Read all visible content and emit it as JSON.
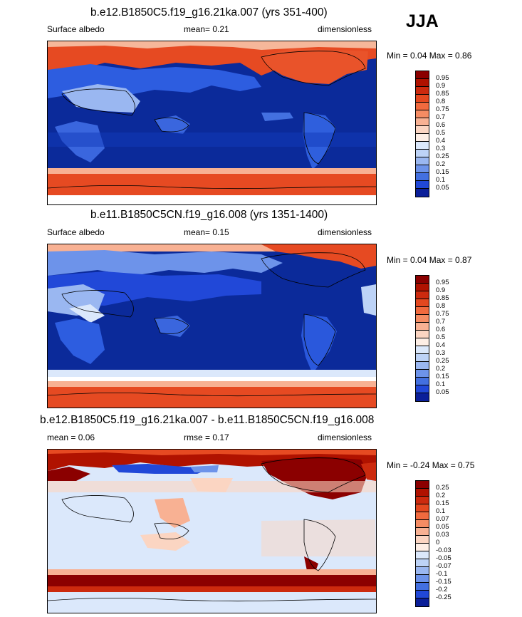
{
  "season": "JJA",
  "panels": [
    {
      "title": "b.e12.B1850C5.f19_g16.21ka.007 (yrs 351-400)",
      "left_label": "Surface albedo",
      "center_label": "mean=  0.21",
      "right_label": "dimensionless",
      "minmax": "Min =   0.04 Max =   0.86"
    },
    {
      "title": "b.e11.B1850C5CN.f19_g16.008 (yrs 1351-1400)",
      "left_label": "Surface albedo",
      "center_label": "mean=  0.15",
      "right_label": "dimensionless",
      "minmax": "Min =   0.04 Max =   0.87"
    },
    {
      "title": "b.e12.B1850C5.f19_g16.21ka.007 - b.e11.B1850C5CN.f19_g16.008",
      "left_label": "mean =   0.06",
      "center_label": "rmse =   0.17",
      "right_label": "dimensionless",
      "minmax": "Min =  -0.24 Max =   0.75"
    }
  ],
  "colorbars": {
    "albedo": {
      "labels": [
        "0.95",
        "0.9",
        "0.85",
        "0.8",
        "0.75",
        "0.7",
        "0.6",
        "0.5",
        "0.4",
        "0.3",
        "0.25",
        "0.2",
        "0.15",
        "0.1",
        "0.05"
      ],
      "colors": [
        "#8b0000",
        "#b01200",
        "#cc2a0e",
        "#e4481f",
        "#f16a3e",
        "#f58c63",
        "#f8b193",
        "#fbd5c2",
        "#fdeee5",
        "#dbe8fb",
        "#bdd3f7",
        "#9ab7f1",
        "#6d93ea",
        "#4370e0",
        "#2148d8",
        "#0b1f99"
      ]
    },
    "difference": {
      "labels": [
        "0.25",
        "0.2",
        "0.15",
        "0.1",
        "0.07",
        "0.05",
        "0.03",
        "0",
        "-0.03",
        "-0.05",
        "-0.07",
        "-0.1",
        "-0.15",
        "-0.2",
        "-0.25"
      ],
      "colors": [
        "#8b0000",
        "#b01200",
        "#cc2a0e",
        "#e4481f",
        "#f16a3e",
        "#f58c63",
        "#f8b193",
        "#fbd5c2",
        "#fdeee5",
        "#dbe8fb",
        "#bdd3f7",
        "#9ab7f1",
        "#6d93ea",
        "#4370e0",
        "#2148d8",
        "#0b1f99"
      ]
    }
  }
}
